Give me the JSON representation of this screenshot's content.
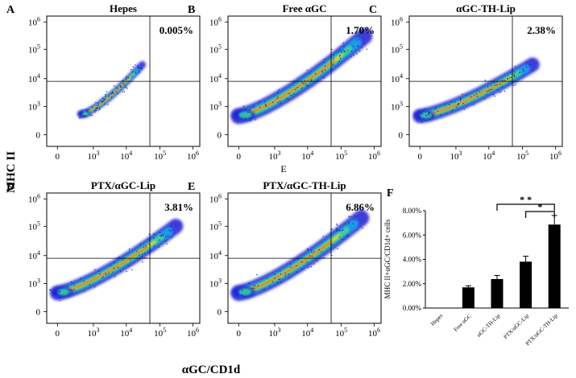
{
  "figure": {
    "y_axis_title": "MHC II",
    "x_axis_title": "αGC/CD1d",
    "stray_label": "E",
    "tick_labels": {
      "zero": "0",
      "base": "10",
      "exponents": [
        "3",
        "4",
        "5",
        "6"
      ]
    }
  },
  "chart_data": [
    {
      "type": "scatter",
      "panel": "A",
      "title": "Hepes",
      "quadrant_percent": "0.005%",
      "xscale": "log (biexponential)",
      "yscale": "log (biexponential)",
      "x_ticks": [
        "0",
        "10^3",
        "10^4",
        "10^5",
        "10^6"
      ],
      "y_ticks": [
        "0",
        "10^3",
        "10^4",
        "10^5",
        "10^6"
      ],
      "gate_x_value": 50000,
      "gate_y_value": 8000,
      "population": {
        "x_range": [
          100,
          30000
        ],
        "y_range": [
          150,
          30000
        ],
        "note": "narrow diagonal density cloud"
      }
    },
    {
      "type": "scatter",
      "panel": "B",
      "title": "Free αGC",
      "quadrant_percent": "1.70%",
      "xscale": "log (biexponential)",
      "yscale": "log (biexponential)",
      "x_ticks": [
        "0",
        "10^3",
        "10^4",
        "10^5",
        "10^6"
      ],
      "y_ticks": [
        "0",
        "10^3",
        "10^4",
        "10^5",
        "10^6"
      ],
      "gate_x_value": 50000,
      "gate_y_value": 8000,
      "population": {
        "x_range": [
          0,
          500000
        ],
        "y_range": [
          100,
          300000
        ],
        "note": "broad diagonal density cloud"
      }
    },
    {
      "type": "scatter",
      "panel": "C",
      "title": "αGC-TH-Lip",
      "quadrant_percent": "2.38%",
      "xscale": "log (biexponential)",
      "yscale": "log (biexponential)",
      "x_ticks": [
        "0",
        "10^3",
        "10^4",
        "10^5",
        "10^6"
      ],
      "y_ticks": [
        "0",
        "10^3",
        "10^4",
        "10^5",
        "10^6"
      ],
      "gate_x_value": 50000,
      "gate_y_value": 8000,
      "population": {
        "x_range": [
          0,
          200000
        ],
        "y_range": [
          100,
          30000
        ],
        "note": "diagonal density cloud"
      }
    },
    {
      "type": "scatter",
      "panel": "D",
      "title": "PTX/αGC-Lip",
      "quadrant_percent": "3.81%",
      "xscale": "log (biexponential)",
      "yscale": "log (biexponential)",
      "x_ticks": [
        "0",
        "10^3",
        "10^4",
        "10^5",
        "10^6"
      ],
      "y_ticks": [
        "0",
        "10^3",
        "10^4",
        "10^5",
        "10^6"
      ],
      "gate_x_value": 50000,
      "gate_y_value": 8000,
      "population": {
        "x_range": [
          0,
          300000
        ],
        "y_range": [
          100,
          100000
        ],
        "note": "diagonal density cloud"
      }
    },
    {
      "type": "scatter",
      "panel": "E",
      "title": "PTX/αGC-TH-Lip",
      "quadrant_percent": "6.86%",
      "xscale": "log (biexponential)",
      "yscale": "log (biexponential)",
      "x_ticks": [
        "0",
        "10^3",
        "10^4",
        "10^5",
        "10^6"
      ],
      "y_ticks": [
        "0",
        "10^3",
        "10^4",
        "10^5",
        "10^6"
      ],
      "gate_x_value": 50000,
      "gate_y_value": 8000,
      "population": {
        "x_range": [
          0,
          400000
        ],
        "y_range": [
          100,
          200000
        ],
        "note": "diagonal density cloud"
      }
    },
    {
      "type": "bar",
      "panel": "F",
      "ylabel": "MHC II+αGC/CD1d+ cells",
      "categories": [
        "Hepes",
        "Free αGC",
        "αGC-TH-Lip",
        "PTX/αGC-Lip",
        "PTX/αGC-TH-Lip"
      ],
      "values": [
        5e-05,
        0.017,
        0.0238,
        0.0381,
        0.0686
      ],
      "errors": [
        0,
        0.0013,
        0.003,
        0.0045,
        0.0075
      ],
      "ylim": [
        0,
        0.08
      ],
      "y_ticks": [
        "0.00%",
        "2.00%",
        "4.00%",
        "6.00%",
        "8.00%"
      ],
      "significance": [
        {
          "from": "αGC-TH-Lip",
          "to": "PTX/αGC-TH-Lip",
          "label": "* *"
        },
        {
          "from": "PTX/αGC-Lip",
          "to": "PTX/αGC-TH-Lip",
          "label": "*"
        }
      ]
    }
  ]
}
